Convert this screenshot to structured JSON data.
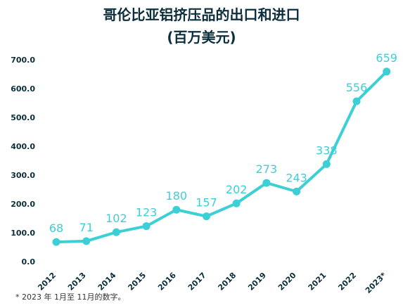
{
  "chart_data": {
    "type": "line",
    "title": "哥伦比亚铝挤压品的出口和进口",
    "subtitle": "(百万美元)",
    "categories": [
      "2012",
      "2013",
      "2014",
      "2015",
      "2016",
      "2017",
      "2018",
      "2019",
      "2020",
      "2021",
      "2022",
      "2023*"
    ],
    "series": [
      {
        "values": [
          68,
          71,
          102,
          123,
          180,
          157,
          202,
          273,
          243,
          338,
          556,
          659
        ]
      }
    ],
    "y_ticks": [
      "0.0",
      "100.0",
      "200.0",
      "300.0",
      "400.0",
      "500.0",
      "600.0",
      "700.0"
    ],
    "ylim": [
      0,
      700
    ],
    "grid": false,
    "colors": {
      "line": "#3ccfd6",
      "label": "#3ccfd6",
      "axis_text": "#0b2e3c"
    },
    "footnote": "* 2023 年 1月至 11月的数字。"
  }
}
